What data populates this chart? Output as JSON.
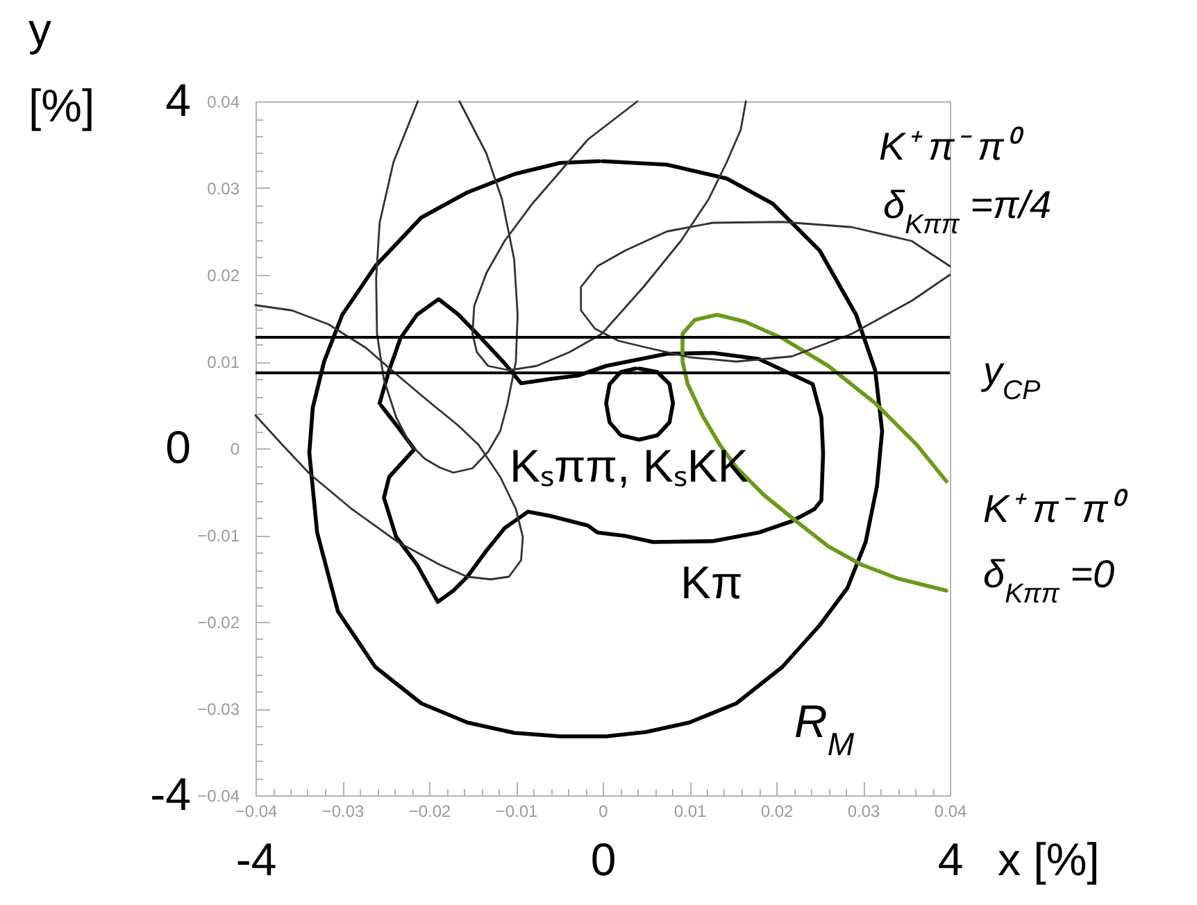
{
  "chart_data": {
    "type": "line",
    "xlim": [
      -0.04,
      0.04
    ],
    "xticks": [
      -0.04,
      {
        "value": -0.038,
        "label": null
      },
      {
        "value": -0.036,
        "label": null
      },
      {
        "value": -0.034,
        "label": null
      },
      {
        "value": -0.032,
        "label": null
      },
      -0.03,
      {
        "value": -0.028,
        "label": null
      },
      {
        "value": -0.026,
        "label": null
      },
      {
        "value": -0.024,
        "label": null
      },
      {
        "value": -0.022,
        "label": null
      },
      -0.02,
      {
        "value": -0.018,
        "label": null
      },
      {
        "value": -0.016,
        "label": null
      },
      {
        "value": -0.014,
        "label": null
      },
      {
        "value": -0.012,
        "label": null
      },
      -0.01,
      {
        "value": -0.008,
        "label": null
      },
      {
        "value": -0.006,
        "label": null
      },
      {
        "value": -0.004,
        "label": null
      },
      {
        "value": -0.002,
        "label": null
      },
      0,
      {
        "value": 0.002,
        "label": null
      },
      {
        "value": 0.004,
        "label": null
      },
      {
        "value": 0.006,
        "label": null
      },
      {
        "value": 0.008,
        "label": null
      },
      0.01,
      {
        "value": 0.012,
        "label": null
      },
      {
        "value": 0.014,
        "label": null
      },
      {
        "value": 0.016,
        "label": null
      },
      {
        "value": 0.018,
        "label": null
      },
      0.02,
      {
        "value": 0.022,
        "label": null
      },
      {
        "value": 0.024,
        "label": null
      },
      {
        "value": 0.026,
        "label": null
      },
      {
        "value": 0.028,
        "label": null
      },
      0.03,
      {
        "value": 0.032,
        "label": null
      },
      {
        "value": 0.034,
        "label": null
      },
      {
        "value": 0.036,
        "label": null
      },
      {
        "value": 0.038,
        "label": null
      },
      0.04
    ],
    "ylim": [
      -0.04,
      0.04
    ],
    "yticks": [
      -0.04,
      {
        "value": -0.038,
        "label": null
      },
      {
        "value": -0.036,
        "label": null
      },
      {
        "value": -0.034,
        "label": null
      },
      {
        "value": -0.032,
        "label": null
      },
      -0.03,
      {
        "value": -0.028,
        "label": null
      },
      {
        "value": -0.026,
        "label": null
      },
      {
        "value": -0.024,
        "label": null
      },
      {
        "value": -0.022,
        "label": null
      },
      -0.02,
      {
        "value": -0.018,
        "label": null
      },
      {
        "value": -0.016,
        "label": null
      },
      {
        "value": -0.014,
        "label": null
      },
      {
        "value": -0.012,
        "label": null
      },
      -0.01,
      {
        "value": -0.008,
        "label": null
      },
      {
        "value": -0.006,
        "label": null
      },
      {
        "value": -0.004,
        "label": null
      },
      {
        "value": -0.002,
        "label": null
      },
      0,
      {
        "value": 0.002,
        "label": null
      },
      {
        "value": 0.004,
        "label": null
      },
      {
        "value": 0.006,
        "label": null
      },
      {
        "value": 0.008,
        "label": null
      },
      0.01,
      {
        "value": 0.012,
        "label": null
      },
      {
        "value": 0.014,
        "label": null
      },
      {
        "value": 0.016,
        "label": null
      },
      {
        "value": 0.018,
        "label": null
      },
      0.02,
      {
        "value": 0.022,
        "label": null
      },
      {
        "value": 0.024,
        "label": null
      },
      {
        "value": 0.026,
        "label": null
      },
      {
        "value": 0.028,
        "label": null
      },
      0.03,
      {
        "value": 0.032,
        "label": null
      },
      {
        "value": 0.034,
        "label": null
      },
      {
        "value": 0.036,
        "label": null
      },
      {
        "value": 0.038,
        "label": null
      },
      0.04
    ],
    "x2lim": [
      -4,
      4
    ],
    "x2ticks": [
      -4,
      0,
      4
    ],
    "x2label": "x [%]",
    "y2lim": [
      -4,
      4
    ],
    "y2ticks": [
      -4,
      0,
      4
    ],
    "y2label": "y [%]",
    "series": [
      {
        "color": "#000000",
        "x": [
          0.0,
          0.0074,
          0.0143,
          0.0196,
          0.025,
          0.0292,
          0.0314,
          0.0322,
          0.0316,
          0.0303,
          0.0282,
          0.025,
          0.0207,
          0.0154,
          0.01,
          0.005,
          0.0004,
          -0.0049,
          -0.0102,
          -0.0156,
          -0.0209,
          -0.0262,
          -0.0305,
          -0.0329,
          -0.0338,
          -0.0334,
          -0.0321,
          -0.03,
          -0.0262,
          -0.0209,
          -0.0156,
          -0.0102,
          -0.0049,
          -0.0004
        ],
        "values": [
          0.0331,
          0.0327,
          0.0311,
          0.0282,
          0.0228,
          0.0154,
          0.009,
          0.002,
          -0.0044,
          -0.0108,
          -0.0161,
          -0.0204,
          -0.0252,
          -0.0294,
          -0.0316,
          -0.0327,
          -0.0332,
          -0.0332,
          -0.0328,
          -0.0316,
          -0.0294,
          -0.0252,
          -0.0188,
          -0.0097,
          -0.0005,
          0.0047,
          0.01,
          0.0154,
          0.021,
          0.0266,
          0.0295,
          0.0316,
          0.0329,
          0.0331
        ]
      },
      {
        "color": "#000000",
        "x": [
          -0.0257,
          -0.0246,
          -0.0233,
          -0.0214,
          -0.0189,
          -0.0166,
          -0.014,
          -0.0113,
          -0.0094,
          -0.006,
          -0.0028,
          0.0004,
          0.0074,
          0.0127,
          0.018,
          0.0242,
          0.0252,
          0.0254,
          0.0252,
          0.0244,
          0.0218,
          0.018,
          0.0127,
          0.0058,
          0.0026,
          -0.0006,
          -0.0017,
          -0.006,
          -0.0086,
          -0.0113,
          -0.0134,
          -0.0156,
          -0.0172,
          -0.019,
          -0.0214,
          -0.0238,
          -0.0252,
          -0.0246,
          -0.0217,
          -0.0237,
          -0.0255
        ],
        "values": [
          0.0052,
          0.009,
          0.0127,
          0.0154,
          0.0172,
          0.0154,
          0.0127,
          0.0098,
          0.0075,
          0.008,
          0.0084,
          0.0095,
          0.0109,
          0.011,
          0.0103,
          0.0074,
          0.0036,
          -0.0006,
          -0.006,
          -0.007,
          -0.0084,
          -0.0097,
          -0.0107,
          -0.0108,
          -0.0101,
          -0.0097,
          -0.0089,
          -0.0078,
          -0.0073,
          -0.0092,
          -0.0118,
          -0.0148,
          -0.0164,
          -0.0177,
          -0.0134,
          -0.0102,
          -0.0057,
          -0.0033,
          -0.0001,
          0.0026,
          0.0049
        ]
      },
      {
        "color": "#000000",
        "x": [
          0.0042,
          0.0063,
          0.0077,
          0.0081,
          0.0077,
          0.0063,
          0.0042,
          0.0021,
          0.0008,
          0.0004,
          0.0008,
          0.0021,
          0.0038
        ],
        "values": [
          0.0092,
          0.0088,
          0.0074,
          0.0052,
          0.003,
          0.0015,
          0.001,
          0.0015,
          0.003,
          0.0052,
          0.0074,
          0.0088,
          0.0092
        ]
      },
      {
        "color": "#6a9a1a",
        "x": [
          0.0396,
          0.0362,
          0.0314,
          0.026,
          0.0207,
          0.0164,
          0.0132,
          0.0106,
          0.0092,
          0.0092,
          0.0098,
          0.0116,
          0.0135,
          0.0154,
          0.0186,
          0.0223,
          0.026,
          0.0298,
          0.034,
          0.0396
        ],
        "values": [
          -0.0038,
          0.0004,
          0.0052,
          0.0095,
          0.0127,
          0.0146,
          0.0154,
          0.0148,
          0.0132,
          0.01,
          0.0074,
          0.0036,
          0.0004,
          -0.0022,
          -0.0054,
          -0.0084,
          -0.0113,
          -0.0134,
          -0.015,
          -0.0164
        ]
      },
      {
        "color": "#333333",
        "x": [
          -0.0213,
          -0.0241,
          -0.0257,
          -0.0261,
          -0.026,
          -0.0252,
          -0.0238,
          -0.0222,
          -0.0205,
          -0.0188,
          -0.0172,
          -0.015,
          -0.0132,
          -0.0118,
          -0.011,
          -0.01,
          -0.0098,
          -0.0102,
          -0.0116,
          -0.0134,
          -0.0165
        ],
        "values": [
          0.04,
          0.033,
          0.026,
          0.0196,
          0.0132,
          0.0079,
          0.0036,
          0.0005,
          -0.0012,
          -0.0022,
          -0.0028,
          -0.0023,
          -0.0004,
          0.002,
          0.005,
          0.01,
          0.0154,
          0.0218,
          0.0287,
          0.034,
          0.04
        ]
      },
      {
        "color": "#333333",
        "x": [
          0.004,
          0.0018,
          -0.0017,
          -0.0049,
          -0.0081,
          -0.0113,
          -0.0134,
          -0.0148,
          -0.015,
          -0.0145,
          -0.0132,
          -0.0108,
          -0.0076,
          -0.0038,
          -0.0001,
          0.0047,
          0.009,
          0.0122,
          0.0143,
          0.0159,
          0.0165
        ],
        "values": [
          0.04,
          0.0383,
          0.0356,
          0.0319,
          0.0282,
          0.0239,
          0.0202,
          0.0164,
          0.0132,
          0.0111,
          0.0095,
          0.009,
          0.0095,
          0.0111,
          0.0132,
          0.0186,
          0.0239,
          0.0287,
          0.033,
          0.0367,
          0.04
        ]
      },
      {
        "color": "#333333",
        "x": [
          0.04,
          0.0356,
          0.0287,
          0.0207,
          0.0127,
          0.0074,
          0.0026,
          -0.0006,
          -0.0025,
          -0.0025,
          -0.0009,
          0.0018,
          0.0047,
          0.01,
          0.0154,
          0.0218,
          0.0287,
          0.0356,
          0.04
        ],
        "values": [
          0.021,
          0.0239,
          0.0255,
          0.0261,
          0.026,
          0.025,
          0.0228,
          0.021,
          0.0186,
          0.0159,
          0.0138,
          0.0124,
          0.0117,
          0.0105,
          0.01,
          0.0106,
          0.0132,
          0.017,
          0.02
        ]
      },
      {
        "color": "#333333",
        "x": [
          -0.04,
          -0.0358,
          -0.0316,
          -0.0273,
          -0.0236,
          -0.0198,
          -0.0166,
          -0.0143,
          -0.0118,
          -0.01,
          -0.0092,
          -0.0094,
          -0.0108,
          -0.0129,
          -0.0156,
          -0.0188,
          -0.0236,
          -0.0289,
          -0.0337,
          -0.0369,
          -0.04
        ],
        "values": [
          0.0165,
          0.0159,
          0.0143,
          0.0116,
          0.0084,
          0.0052,
          0.0026,
          0.0004,
          -0.0033,
          -0.007,
          -0.0102,
          -0.0129,
          -0.0148,
          -0.0151,
          -0.0148,
          -0.0134,
          -0.0108,
          -0.007,
          -0.003,
          0.0004,
          0.0038
        ]
      }
    ],
    "ref_lines": [
      {
        "axis": "y",
        "value": 0.0128,
        "color": "#000000"
      },
      {
        "axis": "y",
        "value": 0.0087,
        "label": "y$_{CP}$",
        "color": "#000000"
      }
    ],
    "annotations": [
      "K⁺ π⁻ π⁰",
      "δ$_{Kππ}$ =π/4",
      "Kₛππ, KₛKK",
      "Kπ",
      "R$_{M}$",
      "K⁺ π⁻ π⁰",
      "δ$_{Kππ}$ =0"
    ]
  }
}
